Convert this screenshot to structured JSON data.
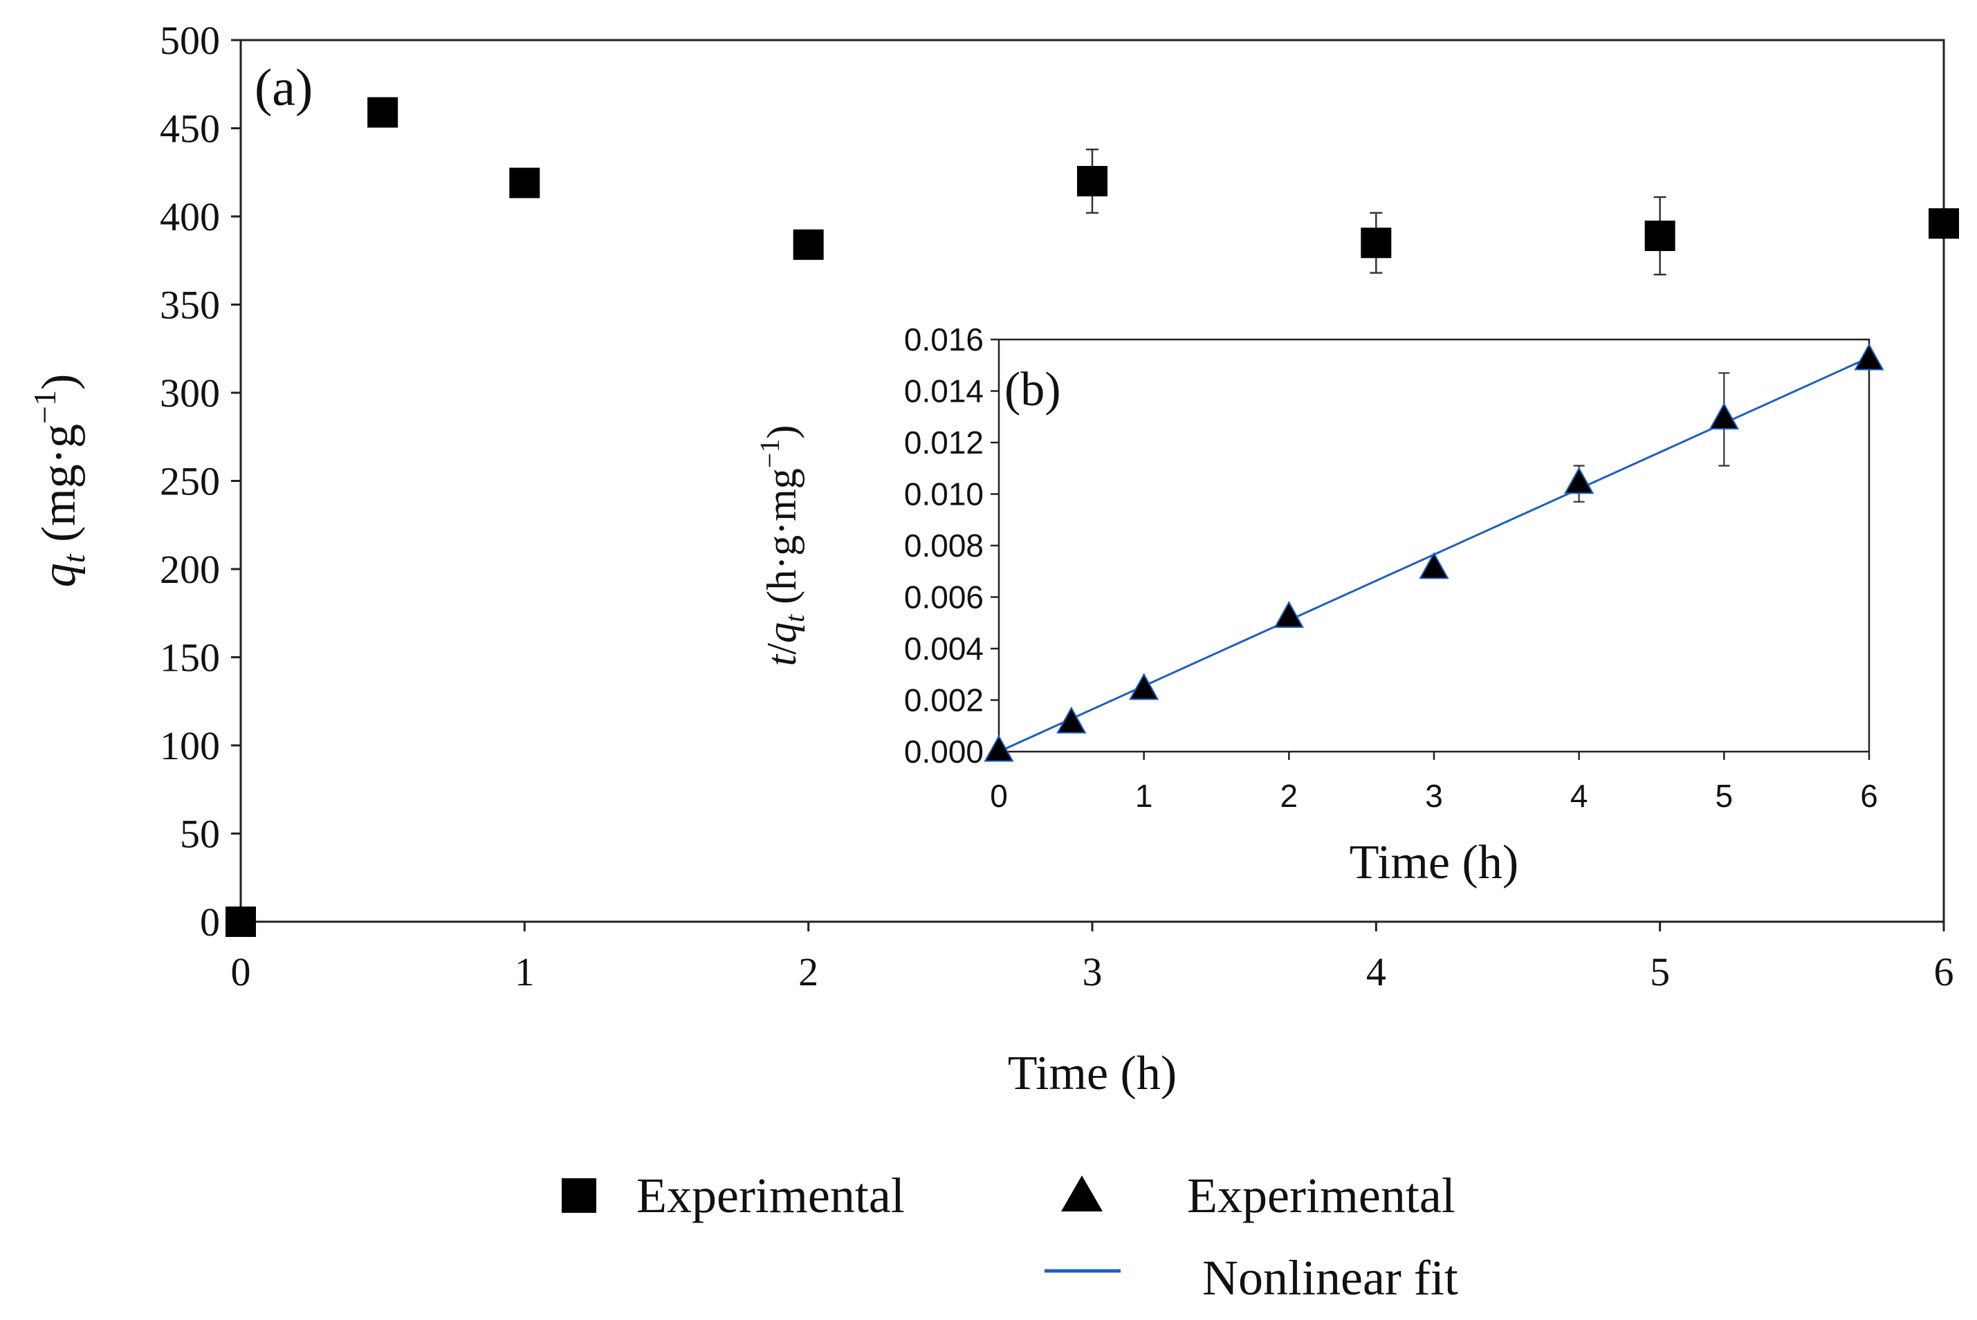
{
  "chart_data": [
    {
      "panel": "(a)",
      "type": "scatter",
      "xlabel": "Time (h)",
      "ylabel_parts": {
        "var": "q",
        "sub": "t",
        "unit": " (mg·g",
        "sup": "−1",
        "close": ")"
      },
      "xlim": [
        0,
        6
      ],
      "ylim": [
        0,
        500
      ],
      "xticks": [
        0,
        1,
        2,
        3,
        4,
        5,
        6
      ],
      "yticks": [
        0,
        50,
        100,
        150,
        200,
        250,
        300,
        350,
        400,
        450,
        500
      ],
      "series": [
        {
          "name": "Experimental",
          "marker": "square",
          "x": [
            0,
            0.5,
            1,
            2,
            3,
            4,
            5,
            6
          ],
          "y": [
            0,
            459,
            419,
            384,
            420,
            385,
            389,
            396
          ],
          "yerr": [
            0,
            0,
            0,
            0,
            18,
            17,
            22,
            0
          ]
        }
      ]
    },
    {
      "panel": "(b)",
      "type": "scatter",
      "xlabel": "Time (h)",
      "ylabel_parts": {
        "pre": "t",
        "slash": "/",
        "var": "q",
        "sub": "t",
        "unit": " (h·g·mg",
        "sup": "−1",
        "close": ")"
      },
      "xlim": [
        0,
        6
      ],
      "ylim": [
        0,
        0.016
      ],
      "xticks": [
        "0",
        "1",
        "2",
        "3",
        "4",
        "5",
        "6"
      ],
      "yticks": [
        "0.000",
        "0.002",
        "0.004",
        "0.006",
        "0.008",
        "0.010",
        "0.012",
        "0.014",
        "0.016"
      ],
      "series": [
        {
          "name": "Experimental",
          "marker": "triangle",
          "x": [
            0,
            0.5,
            1,
            2,
            3,
            4,
            5,
            6
          ],
          "y": [
            0,
            0.0011,
            0.0024,
            0.0052,
            0.0071,
            0.0104,
            0.0129,
            0.0152
          ],
          "yerr": [
            0,
            0,
            0,
            0,
            0,
            0.0007,
            0.0018,
            0
          ]
        },
        {
          "name": "Nonlinear fit",
          "type": "line",
          "color": "#1f5fbf",
          "x": [
            0,
            6
          ],
          "y": [
            0,
            0.0153
          ]
        }
      ]
    }
  ],
  "legend": [
    {
      "label": "Experimental",
      "marker": "square"
    },
    {
      "label": "Experimental",
      "marker": "triangle"
    },
    {
      "label": "Nonlinear fit",
      "marker": "line"
    }
  ]
}
